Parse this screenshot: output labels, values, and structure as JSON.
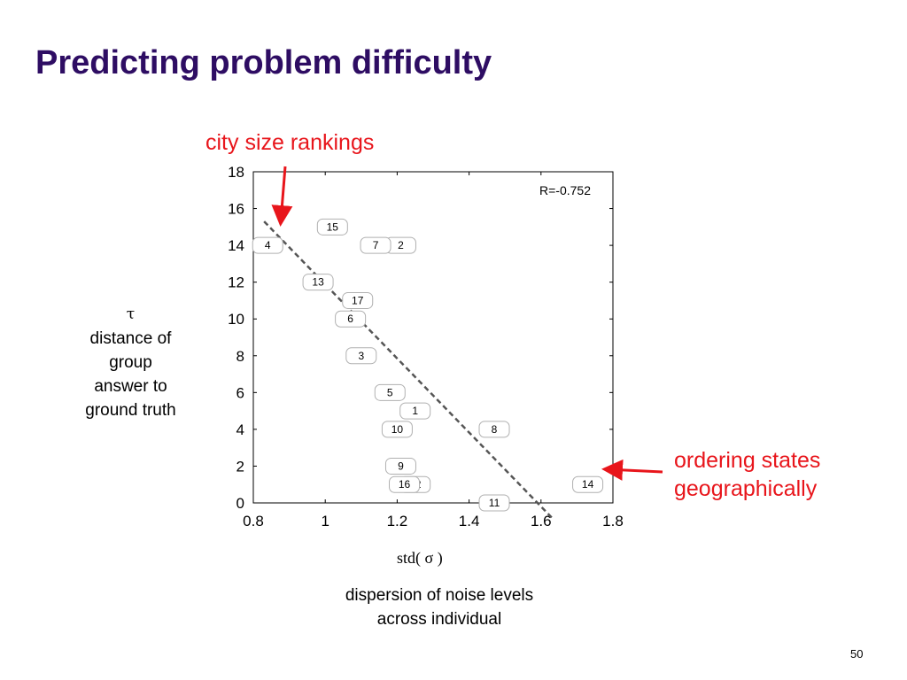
{
  "slide": {
    "title": "Predicting problem difficulty",
    "page_number": "50"
  },
  "annotations": {
    "top": "city size rankings",
    "right_line1": "ordering states",
    "right_line2": "geographically"
  },
  "y_axis": {
    "symbol": "τ",
    "desc_lines": [
      "distance of",
      "group",
      "answer to",
      "ground truth"
    ]
  },
  "x_axis": {
    "symbol": "std( σ )",
    "desc_lines": [
      "dispersion of noise levels",
      "across individual"
    ]
  },
  "colors": {
    "title": "#2e0d63",
    "annotation": "#e8151b",
    "fit_line": "#555555"
  },
  "chart_data": {
    "type": "scatter",
    "r_label": "R=-0.752",
    "xlim": [
      0.8,
      1.8
    ],
    "ylim": [
      0,
      18
    ],
    "xticks": [
      "0.8",
      "1",
      "1.2",
      "1.4",
      "1.6",
      "1.8"
    ],
    "yticks": [
      "0",
      "2",
      "4",
      "6",
      "8",
      "10",
      "12",
      "14",
      "16",
      "18"
    ],
    "points": [
      {
        "label": "1",
        "x": 1.25,
        "y": 5
      },
      {
        "label": "2",
        "x": 1.21,
        "y": 14
      },
      {
        "label": "3",
        "x": 1.1,
        "y": 8
      },
      {
        "label": "4",
        "x": 0.84,
        "y": 14
      },
      {
        "label": "5",
        "x": 1.18,
        "y": 6
      },
      {
        "label": "6",
        "x": 1.07,
        "y": 10
      },
      {
        "label": "7",
        "x": 1.14,
        "y": 14
      },
      {
        "label": "8",
        "x": 1.47,
        "y": 4
      },
      {
        "label": "9",
        "x": 1.21,
        "y": 2
      },
      {
        "label": "10",
        "x": 1.2,
        "y": 4
      },
      {
        "label": "11",
        "x": 1.47,
        "y": 0
      },
      {
        "label": "12",
        "x": 1.25,
        "y": 1
      },
      {
        "label": "13",
        "x": 0.98,
        "y": 12
      },
      {
        "label": "14",
        "x": 1.73,
        "y": 1
      },
      {
        "label": "15",
        "x": 1.02,
        "y": 15
      },
      {
        "label": "16",
        "x": 1.22,
        "y": 1
      },
      {
        "label": "17",
        "x": 1.09,
        "y": 11
      }
    ],
    "fit_line": {
      "x": [
        0.83,
        1.63
      ],
      "y": [
        15.3,
        -0.8
      ]
    }
  }
}
